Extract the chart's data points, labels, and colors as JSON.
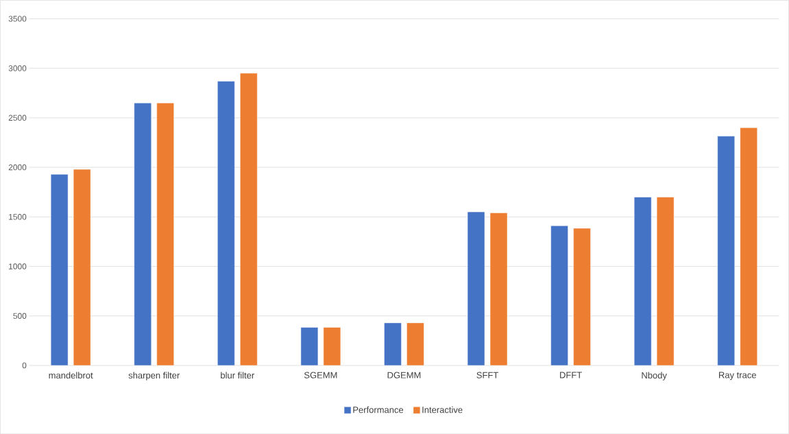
{
  "chart_data": {
    "type": "bar",
    "categories": [
      "mandelbrot",
      "sharpen filter",
      "blur filter",
      "SGEMM",
      "DGEMM",
      "SFFT",
      "DFFT",
      "Nbody",
      "Ray trace"
    ],
    "series": [
      {
        "name": "Performance",
        "color": "#4472c4",
        "values": [
          1930,
          2650,
          2870,
          385,
          430,
          1550,
          1410,
          1700,
          2315
        ]
      },
      {
        "name": "Interactive",
        "color": "#ed7d31",
        "values": [
          1980,
          2650,
          2950,
          385,
          430,
          1540,
          1385,
          1700,
          2400
        ]
      }
    ],
    "ylim": [
      0,
      3500
    ],
    "yticks": [
      0,
      500,
      1000,
      1500,
      2000,
      2500,
      3000,
      3500
    ],
    "grid": "y",
    "legend": "bottom"
  }
}
